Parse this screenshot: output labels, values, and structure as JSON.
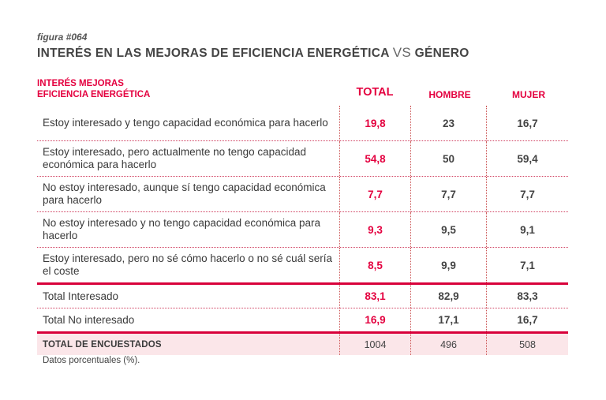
{
  "figure": "figura #064",
  "title_main": "INTERÉS EN LAS MEJORAS DE EFICIENCIA ENERGÉTICA",
  "title_vs": "VS",
  "title_end": "GÉNERO",
  "header": {
    "category_line1": "INTERÉS MEJORAS",
    "category_line2": "EFICIENCIA ENERGÉTICA",
    "total": "TOTAL",
    "hombre": "HOMBRE",
    "mujer": "MUJER"
  },
  "rows": [
    {
      "label": "Estoy interesado y tengo capacidad económica para hacerlo",
      "total": "19,8",
      "hombre": "23",
      "mujer": "16,7"
    },
    {
      "label": "Estoy interesado, pero actualmente no tengo capacidad económica para hacerlo",
      "total": "54,8",
      "hombre": "50",
      "mujer": "59,4"
    },
    {
      "label": "No estoy interesado, aunque sí tengo capacidad económica para hacerlo",
      "total": "7,7",
      "hombre": "7,7",
      "mujer": "7,7"
    },
    {
      "label": "No estoy interesado y no tengo capacidad económica para hacerlo",
      "total": "9,3",
      "hombre": "9,5",
      "mujer": "9,1"
    },
    {
      "label": "Estoy interesado, pero no sé cómo hacerlo o no sé cuál sería el coste",
      "total": "8,5",
      "hombre": "9,9",
      "mujer": "7,1"
    },
    {
      "label": "Total Interesado",
      "total": "83,1",
      "hombre": "82,9",
      "mujer": "83,3"
    },
    {
      "label": "Total No interesado",
      "total": "16,9",
      "hombre": "17,1",
      "mujer": "16,7"
    },
    {
      "label": "TOTAL DE ENCUESTADOS",
      "total": "1004",
      "hombre": "496",
      "mujer": "508"
    }
  ],
  "note": "Datos porcentuales (%).",
  "chart_data": {
    "type": "table",
    "title": "INTERÉS EN LAS MEJORAS DE EFICIENCIA ENERGÉTICA VS GÉNERO",
    "columns": [
      "TOTAL",
      "HOMBRE",
      "MUJER"
    ],
    "categories": [
      "Estoy interesado y tengo capacidad económica para hacerlo",
      "Estoy interesado, pero actualmente no tengo capacidad económica para hacerlo",
      "No estoy interesado, aunque sí tengo capacidad económica para hacerlo",
      "No estoy interesado y no tengo capacidad económica para hacerlo",
      "Estoy interesado, pero no sé cómo hacerlo o no sé cuál sería el coste",
      "Total Interesado",
      "Total No interesado",
      "TOTAL DE ENCUESTADOS"
    ],
    "series": [
      {
        "name": "TOTAL",
        "values": [
          19.8,
          54.8,
          7.7,
          9.3,
          8.5,
          83.1,
          16.9,
          1004
        ]
      },
      {
        "name": "HOMBRE",
        "values": [
          23,
          50,
          7.7,
          9.5,
          9.9,
          82.9,
          17.1,
          496
        ]
      },
      {
        "name": "MUJER",
        "values": [
          16.7,
          59.4,
          7.7,
          9.1,
          7.1,
          83.3,
          16.7,
          508
        ]
      }
    ],
    "unit": "%"
  },
  "colors": {
    "accent": "#e4003f",
    "final_row_bg": "#fbe6e9"
  }
}
